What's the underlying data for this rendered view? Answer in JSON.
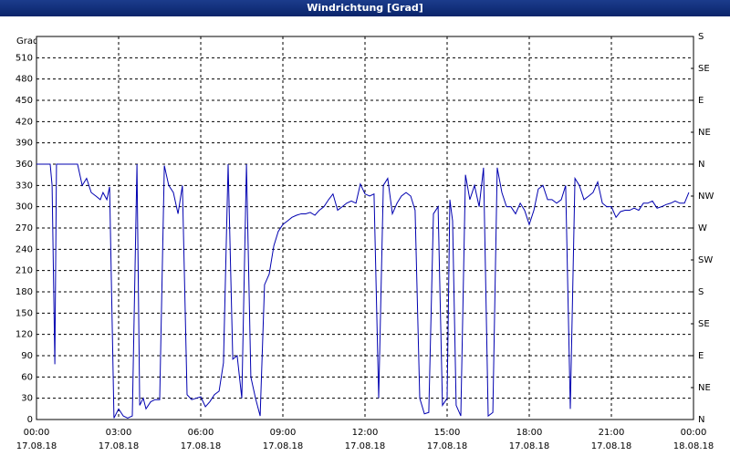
{
  "chart_data": {
    "type": "line",
    "title": "Windrichtung [Grad]",
    "y_label": "Grad",
    "xlim": [
      0,
      24
    ],
    "ylim": [
      0,
      540
    ],
    "y2lim": [
      0,
      540
    ],
    "grid": true,
    "xticks": [
      {
        "value": 0,
        "label": "00:00 17.08.18"
      },
      {
        "value": 3,
        "label": "03:00 17.08.18"
      },
      {
        "value": 6,
        "label": "06:00 17.08.18"
      },
      {
        "value": 9,
        "label": "09:00 17.08.18"
      },
      {
        "value": 12,
        "label": "12:00 17.08.18"
      },
      {
        "value": 15,
        "label": "15:00 17.08.18"
      },
      {
        "value": 18,
        "label": "18:00 17.08.18"
      },
      {
        "value": 21,
        "label": "21:00 17.08.18"
      },
      {
        "value": 24,
        "label": "00:00 18.08.18"
      }
    ],
    "yticks": [
      0,
      30,
      60,
      90,
      120,
      150,
      180,
      210,
      240,
      270,
      300,
      330,
      360,
      390,
      420,
      450,
      480,
      510
    ],
    "y2ticks": [
      {
        "value": 0,
        "label": "N"
      },
      {
        "value": 45,
        "label": "NE"
      },
      {
        "value": 90,
        "label": "E"
      },
      {
        "value": 135,
        "label": "SE"
      },
      {
        "value": 180,
        "label": "S"
      },
      {
        "value": 225,
        "label": "SW"
      },
      {
        "value": 270,
        "label": "W"
      },
      {
        "value": 315,
        "label": "NW"
      },
      {
        "value": 360,
        "label": "N"
      },
      {
        "value": 405,
        "label": "NE"
      },
      {
        "value": 450,
        "label": "E"
      },
      {
        "value": 495,
        "label": "SE"
      },
      {
        "value": 540,
        "label": "S"
      }
    ],
    "series": [
      {
        "color": "#0000b0",
        "x": [
          0,
          0.5,
          0.57,
          0.67,
          0.73,
          1.5,
          1.67,
          1.83,
          2,
          2.17,
          2.33,
          2.43,
          2.57,
          2.67,
          2.83,
          3,
          3.17,
          3.33,
          3.5,
          3.67,
          3.77,
          3.9,
          4,
          4.17,
          4.33,
          4.5,
          4.67,
          4.83,
          5,
          5.17,
          5.33,
          5.5,
          5.67,
          5.83,
          6,
          6.17,
          6.33,
          6.5,
          6.67,
          6.83,
          7,
          7.17,
          7.33,
          7.5,
          7.67,
          7.83,
          8,
          8.17,
          8.33,
          8.5,
          8.67,
          8.83,
          9,
          9.17,
          9.33,
          9.5,
          9.67,
          9.83,
          10,
          10.17,
          10.33,
          10.5,
          10.67,
          10.83,
          11,
          11.17,
          11.33,
          11.5,
          11.67,
          11.83,
          12,
          12.17,
          12.33,
          12.5,
          12.67,
          12.83,
          13,
          13.17,
          13.33,
          13.5,
          13.67,
          13.83,
          14,
          14.17,
          14.33,
          14.5,
          14.67,
          14.83,
          15,
          15.1,
          15.2,
          15.33,
          15.5,
          15.67,
          15.83,
          16,
          16.17,
          16.33,
          16.5,
          16.67,
          16.83,
          17,
          17.17,
          17.33,
          17.5,
          17.67,
          17.83,
          18,
          18.17,
          18.33,
          18.5,
          18.67,
          18.83,
          19,
          19.17,
          19.33,
          19.5,
          19.67,
          19.83,
          20,
          20.17,
          20.33,
          20.5,
          20.67,
          20.83,
          21,
          21.17,
          21.33,
          21.5,
          21.67,
          21.83,
          22,
          22.17,
          22.33,
          22.5,
          22.67,
          22.83,
          23,
          23.17,
          23.33,
          23.5,
          23.67,
          23.83
        ],
        "values": [
          360,
          360,
          330,
          78,
          360,
          360,
          330,
          340,
          320,
          315,
          310,
          320,
          310,
          328,
          2,
          15,
          5,
          2,
          5,
          360,
          20,
          30,
          15,
          25,
          28,
          28,
          358,
          330,
          320,
          290,
          330,
          35,
          28,
          30,
          32,
          18,
          25,
          35,
          40,
          80,
          360,
          85,
          90,
          30,
          360,
          60,
          30,
          5,
          190,
          205,
          245,
          265,
          275,
          280,
          285,
          288,
          290,
          290,
          292,
          288,
          295,
          300,
          310,
          318,
          295,
          300,
          305,
          308,
          305,
          332,
          318,
          315,
          318,
          30,
          330,
          340,
          290,
          305,
          315,
          320,
          315,
          295,
          30,
          8,
          10,
          290,
          300,
          20,
          30,
          310,
          280,
          20,
          5,
          345,
          310,
          330,
          300,
          355,
          5,
          10,
          355,
          320,
          300,
          300,
          290,
          305,
          295,
          275,
          295,
          325,
          330,
          310,
          310,
          305,
          310,
          330,
          15,
          340,
          330,
          310,
          315,
          320,
          335,
          305,
          300,
          300,
          285,
          293,
          295,
          295,
          298,
          295,
          305,
          305,
          308,
          298,
          300,
          303,
          305,
          308,
          305,
          305,
          320
        ]
      }
    ]
  }
}
